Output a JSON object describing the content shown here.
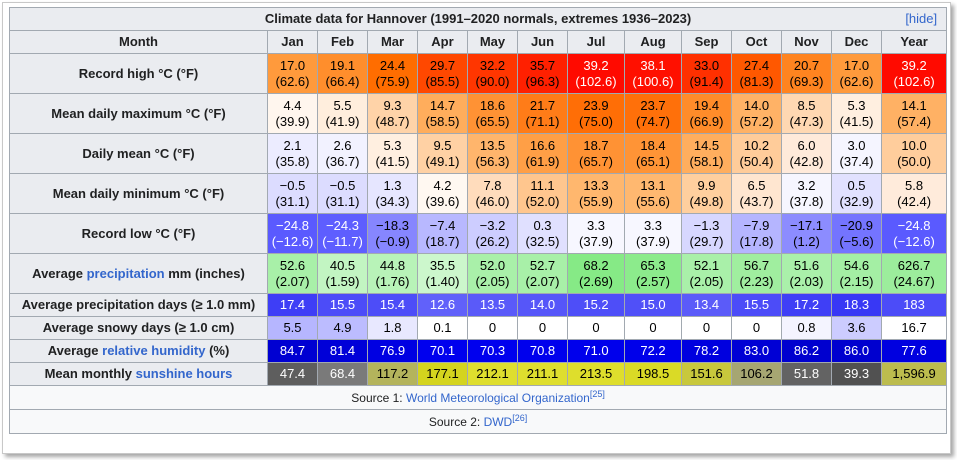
{
  "caption": "Climate data for Hannover (1991–2020 normals, extremes 1936–2023)",
  "hide_label": "[hide]",
  "header": [
    "Month",
    "Jan",
    "Feb",
    "Mar",
    "Apr",
    "May",
    "Jun",
    "Jul",
    "Aug",
    "Sep",
    "Oct",
    "Nov",
    "Dec",
    "Year"
  ],
  "rows": [
    {
      "label": "Record high °C (°F)",
      "cells": [
        {
          "v": "17.0",
          "s": "(62.6)",
          "bg": "#ff9a3c",
          "fg": "#000000"
        },
        {
          "v": "19.1",
          "s": "(66.4)",
          "bg": "#ff8e2c",
          "fg": "#000000"
        },
        {
          "v": "24.4",
          "s": "(75.9)",
          "bg": "#ff6d00",
          "fg": "#000000"
        },
        {
          "v": "29.7",
          "s": "(85.5)",
          "bg": "#ff4800",
          "fg": "#000000"
        },
        {
          "v": "32.2",
          "s": "(90.0)",
          "bg": "#ff3600",
          "fg": "#000000"
        },
        {
          "v": "35.7",
          "s": "(96.3)",
          "bg": "#ff2000",
          "fg": "#000000"
        },
        {
          "v": "39.2",
          "s": "(102.6)",
          "bg": "#ff0a00",
          "fg": "#ffffff"
        },
        {
          "v": "38.1",
          "s": "(100.6)",
          "bg": "#ff1000",
          "fg": "#ffffff"
        },
        {
          "v": "33.0",
          "s": "(91.4)",
          "bg": "#ff3000",
          "fg": "#000000"
        },
        {
          "v": "27.4",
          "s": "(81.3)",
          "bg": "#ff5800",
          "fg": "#000000"
        },
        {
          "v": "20.7",
          "s": "(69.3)",
          "bg": "#ff8420",
          "fg": "#000000"
        },
        {
          "v": "17.0",
          "s": "(62.6)",
          "bg": "#ff9a3c",
          "fg": "#000000"
        },
        {
          "v": "39.2",
          "s": "(102.6)",
          "bg": "#ff0a00",
          "fg": "#ffffff"
        }
      ]
    },
    {
      "label": "Mean daily maximum °C (°F)",
      "cells": [
        {
          "v": "4.4",
          "s": "(39.9)",
          "bg": "#fff6ee",
          "fg": "#000000"
        },
        {
          "v": "5.5",
          "s": "(41.9)",
          "bg": "#ffeedd",
          "fg": "#000000"
        },
        {
          "v": "9.3",
          "s": "(48.7)",
          "bg": "#ffd3a8",
          "fg": "#000000"
        },
        {
          "v": "14.7",
          "s": "(58.5)",
          "bg": "#ffad5c",
          "fg": "#000000"
        },
        {
          "v": "18.6",
          "s": "(65.5)",
          "bg": "#ff9234",
          "fg": "#000000"
        },
        {
          "v": "21.7",
          "s": "(71.1)",
          "bg": "#ff7c18",
          "fg": "#000000"
        },
        {
          "v": "23.9",
          "s": "(75.0)",
          "bg": "#ff6e06",
          "fg": "#000000"
        },
        {
          "v": "23.7",
          "s": "(74.7)",
          "bg": "#ff700a",
          "fg": "#000000"
        },
        {
          "v": "19.4",
          "s": "(66.9)",
          "bg": "#ff8c2a",
          "fg": "#000000"
        },
        {
          "v": "14.0",
          "s": "(57.2)",
          "bg": "#ffb266",
          "fg": "#000000"
        },
        {
          "v": "8.5",
          "s": "(47.3)",
          "bg": "#ffd8b2",
          "fg": "#000000"
        },
        {
          "v": "5.3",
          "s": "(41.5)",
          "bg": "#ffefe0",
          "fg": "#000000"
        },
        {
          "v": "14.1",
          "s": "(57.4)",
          "bg": "#ffb164",
          "fg": "#000000"
        }
      ]
    },
    {
      "label": "Daily mean °C (°F)",
      "cells": [
        {
          "v": "2.1",
          "s": "(35.8)",
          "bg": "#ececff",
          "fg": "#000000"
        },
        {
          "v": "2.6",
          "s": "(36.7)",
          "bg": "#f2f2ff",
          "fg": "#000000"
        },
        {
          "v": "5.3",
          "s": "(41.5)",
          "bg": "#ffefe0",
          "fg": "#000000"
        },
        {
          "v": "9.5",
          "s": "(49.1)",
          "bg": "#ffd1a4",
          "fg": "#000000"
        },
        {
          "v": "13.5",
          "s": "(56.3)",
          "bg": "#ffb56c",
          "fg": "#000000"
        },
        {
          "v": "16.6",
          "s": "(61.9)",
          "bg": "#ff9f46",
          "fg": "#000000"
        },
        {
          "v": "18.7",
          "s": "(65.7)",
          "bg": "#ff9234",
          "fg": "#000000"
        },
        {
          "v": "18.4",
          "s": "(65.1)",
          "bg": "#ff9436",
          "fg": "#000000"
        },
        {
          "v": "14.5",
          "s": "(58.1)",
          "bg": "#ffae5e",
          "fg": "#000000"
        },
        {
          "v": "10.2",
          "s": "(50.4)",
          "bg": "#ffcc9a",
          "fg": "#000000"
        },
        {
          "v": "6.0",
          "s": "(42.8)",
          "bg": "#ffeada",
          "fg": "#000000"
        },
        {
          "v": "3.0",
          "s": "(37.4)",
          "bg": "#f5f5ff",
          "fg": "#000000"
        },
        {
          "v": "10.0",
          "s": "(50.0)",
          "bg": "#ffcd9c",
          "fg": "#000000"
        }
      ]
    },
    {
      "label": "Mean daily minimum °C (°F)",
      "cells": [
        {
          "v": "−0.5",
          "s": "(31.1)",
          "bg": "#dcdcff",
          "fg": "#000000"
        },
        {
          "v": "−0.5",
          "s": "(31.1)",
          "bg": "#dcdcff",
          "fg": "#000000"
        },
        {
          "v": "1.3",
          "s": "(34.3)",
          "bg": "#e6e6ff",
          "fg": "#000000"
        },
        {
          "v": "4.2",
          "s": "(39.6)",
          "bg": "#fff8f1",
          "fg": "#000000"
        },
        {
          "v": "7.8",
          "s": "(46.0)",
          "bg": "#ffdcbc",
          "fg": "#000000"
        },
        {
          "v": "11.1",
          "s": "(52.0)",
          "bg": "#ffc68e",
          "fg": "#000000"
        },
        {
          "v": "13.3",
          "s": "(55.9)",
          "bg": "#ffb76e",
          "fg": "#000000"
        },
        {
          "v": "13.1",
          "s": "(55.6)",
          "bg": "#ffb870",
          "fg": "#000000"
        },
        {
          "v": "9.9",
          "s": "(49.8)",
          "bg": "#ffcf9e",
          "fg": "#000000"
        },
        {
          "v": "6.5",
          "s": "(43.7)",
          "bg": "#ffe6d0",
          "fg": "#000000"
        },
        {
          "v": "3.2",
          "s": "(37.8)",
          "bg": "#f6f6ff",
          "fg": "#000000"
        },
        {
          "v": "0.5",
          "s": "(32.9)",
          "bg": "#e1e1ff",
          "fg": "#000000"
        },
        {
          "v": "5.8",
          "s": "(42.4)",
          "bg": "#ffebdb",
          "fg": "#000000"
        }
      ]
    },
    {
      "label": "Record low °C (°F)",
      "cells": [
        {
          "v": "−24.8",
          "s": "(−12.6)",
          "bg": "#5a5aff",
          "fg": "#ffffff"
        },
        {
          "v": "−24.3",
          "s": "(−11.7)",
          "bg": "#5e5eff",
          "fg": "#ffffff"
        },
        {
          "v": "−18.3",
          "s": "(−0.9)",
          "bg": "#8686ff",
          "fg": "#000000"
        },
        {
          "v": "−7.4",
          "s": "(18.7)",
          "bg": "#b8b8ff",
          "fg": "#000000"
        },
        {
          "v": "−3.2",
          "s": "(26.2)",
          "bg": "#cdcdff",
          "fg": "#000000"
        },
        {
          "v": "0.3",
          "s": "(32.5)",
          "bg": "#e0e0ff",
          "fg": "#000000"
        },
        {
          "v": "3.3",
          "s": "(37.9)",
          "bg": "#f7f7ff",
          "fg": "#000000"
        },
        {
          "v": "3.3",
          "s": "(37.9)",
          "bg": "#f7f7ff",
          "fg": "#000000"
        },
        {
          "v": "−1.3",
          "s": "(29.7)",
          "bg": "#d7d7ff",
          "fg": "#000000"
        },
        {
          "v": "−7.9",
          "s": "(17.8)",
          "bg": "#b5b5ff",
          "fg": "#000000"
        },
        {
          "v": "−17.1",
          "s": "(1.2)",
          "bg": "#8c8cff",
          "fg": "#000000"
        },
        {
          "v": "−20.9",
          "s": "(−5.6)",
          "bg": "#7474ff",
          "fg": "#000000"
        },
        {
          "v": "−24.8",
          "s": "(−12.6)",
          "bg": "#5a5aff",
          "fg": "#ffffff"
        }
      ]
    },
    {
      "label": "Average {precipitation} mm (inches)",
      "link": "precipitation",
      "pre": "Average ",
      "post": " mm (inches)",
      "cells": [
        {
          "v": "52.6",
          "s": "(2.07)",
          "bg": "#a8f0a8",
          "fg": "#000000"
        },
        {
          "v": "40.5",
          "s": "(1.59)",
          "bg": "#c2f5c2",
          "fg": "#000000"
        },
        {
          "v": "44.8",
          "s": "(1.76)",
          "bg": "#b8f3b8",
          "fg": "#000000"
        },
        {
          "v": "35.5",
          "s": "(1.40)",
          "bg": "#ccf7cc",
          "fg": "#000000"
        },
        {
          "v": "52.0",
          "s": "(2.05)",
          "bg": "#a9f0a9",
          "fg": "#000000"
        },
        {
          "v": "52.7",
          "s": "(2.07)",
          "bg": "#a8f0a8",
          "fg": "#000000"
        },
        {
          "v": "68.2",
          "s": "(2.69)",
          "bg": "#86ea86",
          "fg": "#000000"
        },
        {
          "v": "65.3",
          "s": "(2.57)",
          "bg": "#8ceb8c",
          "fg": "#000000"
        },
        {
          "v": "52.1",
          "s": "(2.05)",
          "bg": "#a9f0a9",
          "fg": "#000000"
        },
        {
          "v": "56.7",
          "s": "(2.23)",
          "bg": "#a0ee9f",
          "fg": "#000000"
        },
        {
          "v": "51.6",
          "s": "(2.03)",
          "bg": "#aaf0aa",
          "fg": "#000000"
        },
        {
          "v": "54.6",
          "s": "(2.15)",
          "bg": "#a4ef a4",
          "fg": "#000000"
        },
        {
          "v": "626.7",
          "s": "(24.67)",
          "bg": "#9ced9c",
          "fg": "#000000"
        }
      ]
    },
    {
      "label": "Average precipitation days (≥ 1.0 mm)",
      "cells": [
        {
          "v": "17.4",
          "bg": "#3e3ef6",
          "fg": "#ffffff"
        },
        {
          "v": "15.5",
          "bg": "#4c4cf8",
          "fg": "#ffffff"
        },
        {
          "v": "15.4",
          "bg": "#4d4df8",
          "fg": "#ffffff"
        },
        {
          "v": "12.6",
          "bg": "#6161fa",
          "fg": "#ffffff"
        },
        {
          "v": "13.5",
          "bg": "#5a5af9",
          "fg": "#ffffff"
        },
        {
          "v": "14.0",
          "bg": "#5656f9",
          "fg": "#ffffff"
        },
        {
          "v": "15.2",
          "bg": "#4e4ef8",
          "fg": "#ffffff"
        },
        {
          "v": "15.0",
          "bg": "#5050f8",
          "fg": "#ffffff"
        },
        {
          "v": "13.4",
          "bg": "#5b5bf9",
          "fg": "#ffffff"
        },
        {
          "v": "15.5",
          "bg": "#4c4cf8",
          "fg": "#ffffff"
        },
        {
          "v": "17.2",
          "bg": "#3f3ff6",
          "fg": "#ffffff"
        },
        {
          "v": "18.3",
          "bg": "#3838f5",
          "fg": "#ffffff"
        },
        {
          "v": "183",
          "bg": "#4c4cf8",
          "fg": "#ffffff"
        }
      ]
    },
    {
      "label": "Average snowy days (≥ 1.0 cm)",
      "cells": [
        {
          "v": "5.5",
          "bg": "#b6b6ff",
          "fg": "#000000"
        },
        {
          "v": "4.9",
          "bg": "#bcbcff",
          "fg": "#000000"
        },
        {
          "v": "1.8",
          "bg": "#e8e8ff",
          "fg": "#000000"
        },
        {
          "v": "0.1",
          "bg": "#ffffff",
          "fg": "#000000"
        },
        {
          "v": "0",
          "bg": "#ffffff",
          "fg": "#000000"
        },
        {
          "v": "0",
          "bg": "#ffffff",
          "fg": "#000000"
        },
        {
          "v": "0",
          "bg": "#ffffff",
          "fg": "#000000"
        },
        {
          "v": "0",
          "bg": "#ffffff",
          "fg": "#000000"
        },
        {
          "v": "0",
          "bg": "#ffffff",
          "fg": "#000000"
        },
        {
          "v": "0",
          "bg": "#ffffff",
          "fg": "#000000"
        },
        {
          "v": "0.8",
          "bg": "#f4f4ff",
          "fg": "#000000"
        },
        {
          "v": "3.6",
          "bg": "#ccccff",
          "fg": "#000000"
        },
        {
          "v": "16.7",
          "bg": "#ffffff",
          "fg": "#000000"
        }
      ]
    },
    {
      "label": "Average {relative humidity} (%)",
      "link": "relative humidity",
      "pre": "Average ",
      "post": " (%)",
      "cells": [
        {
          "v": "84.7",
          "bg": "#0000d2",
          "fg": "#ffffff"
        },
        {
          "v": "81.4",
          "bg": "#0000d8",
          "fg": "#ffffff"
        },
        {
          "v": "76.9",
          "bg": "#0000e2",
          "fg": "#ffffff"
        },
        {
          "v": "70.1",
          "bg": "#0000ee",
          "fg": "#ffffff"
        },
        {
          "v": "70.3",
          "bg": "#0000ee",
          "fg": "#ffffff"
        },
        {
          "v": "70.8",
          "bg": "#0000ed",
          "fg": "#ffffff"
        },
        {
          "v": "71.0",
          "bg": "#0000ec",
          "fg": "#ffffff"
        },
        {
          "v": "72.2",
          "bg": "#0000ea",
          "fg": "#ffffff"
        },
        {
          "v": "78.2",
          "bg": "#0000df",
          "fg": "#ffffff"
        },
        {
          "v": "83.0",
          "bg": "#0000d5",
          "fg": "#ffffff"
        },
        {
          "v": "86.2",
          "bg": "#0000cf",
          "fg": "#ffffff"
        },
        {
          "v": "86.0",
          "bg": "#0000cf",
          "fg": "#ffffff"
        },
        {
          "v": "77.6",
          "bg": "#0000e0",
          "fg": "#ffffff"
        }
      ]
    },
    {
      "label": "Mean monthly {sunshine hours}",
      "link": "sunshine hours",
      "pre": "Mean monthly ",
      "post": "",
      "cells": [
        {
          "v": "47.4",
          "bg": "#5e5e5e",
          "fg": "#ffffff"
        },
        {
          "v": "68.4",
          "bg": "#7a7a7a",
          "fg": "#ffffff"
        },
        {
          "v": "117.2",
          "bg": "#b4b45c",
          "fg": "#000000"
        },
        {
          "v": "177.1",
          "bg": "#d4d41e",
          "fg": "#000000"
        },
        {
          "v": "212.1",
          "bg": "#dede2e",
          "fg": "#000000"
        },
        {
          "v": "211.1",
          "bg": "#dede2e",
          "fg": "#000000"
        },
        {
          "v": "213.5",
          "bg": "#dede2c",
          "fg": "#000000"
        },
        {
          "v": "198.5",
          "bg": "#dada26",
          "fg": "#000000"
        },
        {
          "v": "151.6",
          "bg": "#c8c83c",
          "fg": "#000000"
        },
        {
          "v": "106.2",
          "bg": "#a6a672",
          "fg": "#000000"
        },
        {
          "v": "51.8",
          "bg": "#636363",
          "fg": "#ffffff"
        },
        {
          "v": "39.3",
          "bg": "#515151",
          "fg": "#ffffff"
        },
        {
          "v": "1,596.9",
          "bg": "#bcbc4e",
          "fg": "#000000"
        }
      ]
    }
  ],
  "sources": [
    {
      "prefix": "Source 1: ",
      "link": "World Meteorological Organization",
      "ref": "[25]"
    },
    {
      "prefix": "Source 2: ",
      "link": "DWD",
      "ref": "[26]"
    }
  ]
}
